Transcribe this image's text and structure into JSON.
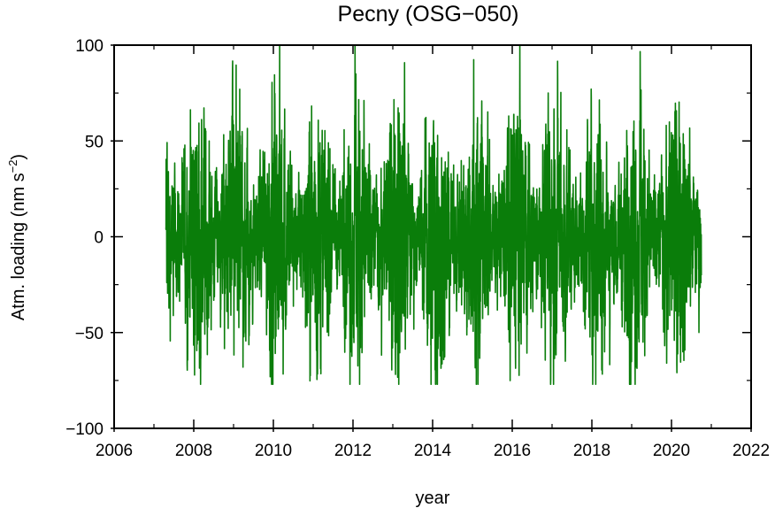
{
  "chart_data": {
    "type": "line",
    "title": "Pecny (OSG−050)",
    "xlabel": "year",
    "ylabel_main": "Atm. loading (nm s",
    "ylabel_sup": "−2",
    "ylabel_end": ")",
    "xlim": [
      2006,
      2022
    ],
    "ylim": [
      -100,
      100
    ],
    "xticks": [
      2006,
      2008,
      2010,
      2012,
      2014,
      2016,
      2018,
      2020,
      2022
    ],
    "xtick_labels": [
      "2006",
      "2008",
      "2010",
      "2012",
      "2014",
      "2016",
      "2018",
      "2020",
      "2022"
    ],
    "yticks": [
      -100,
      -50,
      0,
      50,
      100
    ],
    "ytick_labels": [
      "−100",
      "−50",
      "0",
      "50",
      "100"
    ],
    "grid": false,
    "series": [
      {
        "color": "#0a7d0a",
        "x_start": 2007.3,
        "x_end": 2020.75,
        "samples_per_year": 365,
        "description_values": {
          "min": -77,
          "max": 100,
          "typical_range": [
            -40,
            60
          ]
        }
      }
    ]
  }
}
